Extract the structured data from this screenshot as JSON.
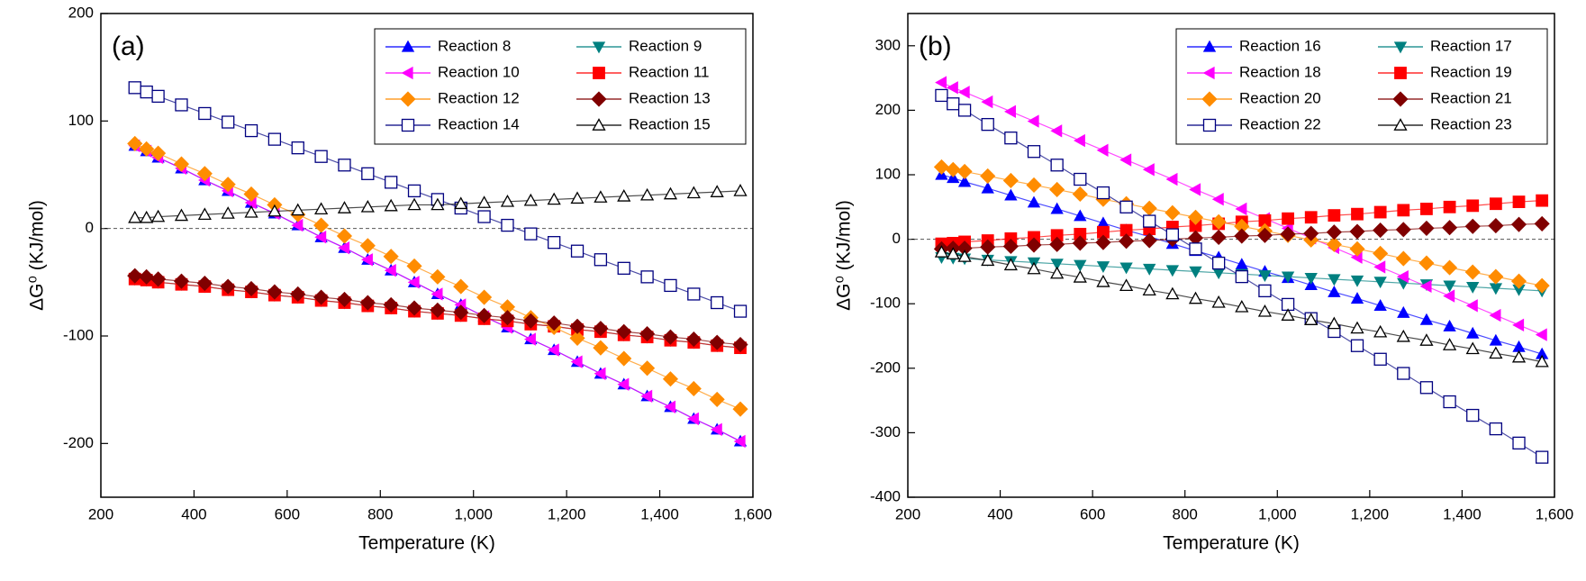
{
  "chart_data": [
    {
      "type": "line",
      "annotation": "(a)",
      "xlabel": "Temperature (K)",
      "ylabel": "ΔG⁰ (KJ/mol)",
      "xlim": [
        200,
        1600
      ],
      "ylim": [
        -250,
        200
      ],
      "xticks": [
        200,
        400,
        600,
        800,
        {
          "value": 1000,
          "label": "1,000"
        },
        {
          "value": 1200,
          "label": "1,200"
        },
        {
          "value": 1400,
          "label": "1,400"
        },
        {
          "value": 1600,
          "label": "1,600"
        }
      ],
      "yticks": [
        -200,
        -100,
        0,
        100,
        200
      ],
      "zero_line": true,
      "legend": "upper right",
      "x": [
        273,
        298,
        323,
        373,
        423,
        473,
        523,
        573,
        623,
        673,
        723,
        773,
        823,
        873,
        923,
        973,
        1023,
        1073,
        1123,
        1173,
        1223,
        1273,
        1323,
        1373,
        1423,
        1473,
        1523,
        1573
      ],
      "series": [
        {
          "name": "Reaction 8",
          "color": "#0000ff",
          "marker": "triangle-up",
          "values": [
            77,
            72,
            66,
            56,
            45,
            35,
            24,
            14,
            3,
            -8,
            -18,
            -29,
            -39,
            -50,
            -61,
            -71,
            -82,
            -92,
            -103,
            -113,
            -124,
            -135,
            -145,
            -156,
            -166,
            -177,
            -187,
            -198
          ]
        },
        {
          "name": "Reaction 9",
          "color": "#008080",
          "marker": "triangle-down",
          "values": [
            -47,
            -48,
            -50,
            -52,
            -54,
            -57,
            -59,
            -62,
            -64,
            -67,
            -69,
            -72,
            -74,
            -77,
            -79,
            -81,
            -84,
            -86,
            -89,
            -91,
            -94,
            -96,
            -99,
            -101,
            -104,
            -106,
            -109,
            -111
          ]
        },
        {
          "name": "Reaction 10",
          "color": "#ff00ff",
          "marker": "triangle-left",
          "values": [
            77,
            72,
            66,
            56,
            45,
            35,
            24,
            14,
            3,
            -8,
            -18,
            -29,
            -39,
            -50,
            -61,
            -71,
            -82,
            -92,
            -103,
            -113,
            -124,
            -135,
            -145,
            -156,
            -166,
            -177,
            -187,
            -198
          ]
        },
        {
          "name": "Reaction 11",
          "color": "#ff0000",
          "marker": "square",
          "values": [
            -47,
            -48,
            -50,
            -52,
            -54,
            -57,
            -59,
            -62,
            -64,
            -67,
            -69,
            -72,
            -74,
            -77,
            -79,
            -81,
            -84,
            -86,
            -89,
            -91,
            -94,
            -96,
            -99,
            -101,
            -104,
            -106,
            -109,
            -111
          ]
        },
        {
          "name": "Reaction 12",
          "color": "#ff8c00",
          "marker": "diamond",
          "values": [
            79,
            74,
            70,
            60,
            51,
            41,
            32,
            22,
            13,
            3,
            -7,
            -16,
            -26,
            -35,
            -45,
            -54,
            -64,
            -73,
            -83,
            -92,
            -102,
            -111,
            -121,
            -130,
            -140,
            -149,
            -159,
            -168
          ]
        },
        {
          "name": "Reaction 13",
          "color": "#800000",
          "marker": "diamond",
          "values": [
            -44,
            -45,
            -47,
            -49,
            -51,
            -54,
            -56,
            -59,
            -61,
            -64,
            -66,
            -69,
            -71,
            -74,
            -76,
            -78,
            -81,
            -83,
            -86,
            -88,
            -91,
            -93,
            -96,
            -98,
            -101,
            -103,
            -106,
            -108
          ]
        },
        {
          "name": "Reaction 14",
          "color": "#000080",
          "marker": "square-open",
          "values": [
            131,
            127,
            123,
            115,
            107,
            99,
            91,
            83,
            75,
            67,
            59,
            51,
            43,
            35,
            27,
            19,
            11,
            3,
            -5,
            -13,
            -21,
            -29,
            -37,
            -45,
            -53,
            -61,
            -69,
            -77
          ]
        },
        {
          "name": "Reaction 15",
          "color": "#000000",
          "marker": "triangle-open",
          "values": [
            10,
            10,
            11,
            12,
            13,
            14,
            15,
            16,
            17,
            18,
            19,
            20,
            21,
            22,
            22,
            23,
            24,
            25,
            26,
            27,
            28,
            29,
            30,
            31,
            32,
            33,
            34,
            35
          ]
        }
      ]
    },
    {
      "type": "line",
      "annotation": "(b)",
      "xlabel": "Temperature (K)",
      "ylabel": "ΔG⁰ (KJ/mol)",
      "xlim": [
        200,
        1600
      ],
      "ylim": [
        -400,
        350
      ],
      "xticks": [
        200,
        400,
        600,
        800,
        {
          "value": 1000,
          "label": "1,000"
        },
        {
          "value": 1200,
          "label": "1,200"
        },
        {
          "value": 1400,
          "label": "1,400"
        },
        {
          "value": 1600,
          "label": "1,600"
        }
      ],
      "yticks": [
        -400,
        -300,
        -200,
        -100,
        0,
        100,
        200,
        300
      ],
      "zero_line": true,
      "legend": "upper right",
      "x": [
        273,
        298,
        323,
        373,
        423,
        473,
        523,
        573,
        623,
        673,
        723,
        773,
        823,
        873,
        923,
        973,
        1023,
        1073,
        1123,
        1173,
        1223,
        1273,
        1323,
        1373,
        1423,
        1473,
        1523,
        1573
      ],
      "series": [
        {
          "name": "Reaction 16",
          "color": "#0000ff",
          "marker": "triangle-up",
          "values": [
            100,
            95,
            89,
            79,
            68,
            57,
            47,
            36,
            25,
            14,
            4,
            -7,
            -18,
            -28,
            -39,
            -50,
            -60,
            -71,
            -82,
            -92,
            -103,
            -114,
            -125,
            -135,
            -146,
            -157,
            -167,
            -178
          ]
        },
        {
          "name": "Reaction 17",
          "color": "#008080",
          "marker": "triangle-down",
          "values": [
            -28,
            -29,
            -30,
            -32,
            -34,
            -36,
            -38,
            -40,
            -42,
            -44,
            -46,
            -48,
            -50,
            -52,
            -54,
            -56,
            -58,
            -60,
            -62,
            -64,
            -66,
            -68,
            -70,
            -72,
            -74,
            -76,
            -78,
            -80
          ]
        },
        {
          "name": "Reaction 18",
          "color": "#ff00ff",
          "marker": "triangle-left",
          "values": [
            243,
            235,
            228,
            213,
            198,
            183,
            168,
            153,
            138,
            123,
            108,
            93,
            77,
            62,
            47,
            32,
            17,
            2,
            -13,
            -28,
            -43,
            -58,
            -73,
            -88,
            -103,
            -118,
            -133,
            -148
          ]
        },
        {
          "name": "Reaction 19",
          "color": "#ff0000",
          "marker": "square",
          "values": [
            -7,
            -6,
            -4,
            -2,
            1,
            3,
            6,
            8,
            11,
            14,
            16,
            19,
            21,
            24,
            27,
            29,
            32,
            34,
            37,
            39,
            42,
            45,
            47,
            50,
            52,
            55,
            58,
            60
          ]
        },
        {
          "name": "Reaction 20",
          "color": "#ff8c00",
          "marker": "diamond",
          "values": [
            112,
            108,
            105,
            98,
            91,
            84,
            77,
            70,
            62,
            55,
            48,
            41,
            34,
            27,
            20,
            13,
            6,
            -1,
            -8,
            -15,
            -22,
            -30,
            -37,
            -44,
            -51,
            -58,
            -65,
            -72
          ]
        },
        {
          "name": "Reaction 21",
          "color": "#800000",
          "marker": "diamond",
          "values": [
            -15,
            -14,
            -14,
            -12,
            -11,
            -9,
            -8,
            -6,
            -5,
            -3,
            -2,
            0,
            2,
            3,
            5,
            6,
            8,
            9,
            11,
            12,
            14,
            15,
            17,
            18,
            20,
            21,
            23,
            24
          ]
        },
        {
          "name": "Reaction 22",
          "color": "#000080",
          "marker": "square-open",
          "values": [
            223,
            210,
            200,
            178,
            157,
            136,
            115,
            93,
            72,
            50,
            28,
            7,
            -15,
            -37,
            -58,
            -80,
            -101,
            -123,
            -143,
            -165,
            -186,
            -208,
            -230,
            -252,
            -273,
            -294,
            -316,
            -338
          ]
        },
        {
          "name": "Reaction 23",
          "color": "#000000",
          "marker": "triangle-open",
          "values": [
            -20,
            -23,
            -27,
            -33,
            -40,
            -46,
            -53,
            -59,
            -66,
            -72,
            -79,
            -85,
            -92,
            -98,
            -105,
            -112,
            -118,
            -125,
            -131,
            -138,
            -144,
            -151,
            -157,
            -164,
            -170,
            -177,
            -183,
            -190
          ]
        }
      ]
    }
  ]
}
